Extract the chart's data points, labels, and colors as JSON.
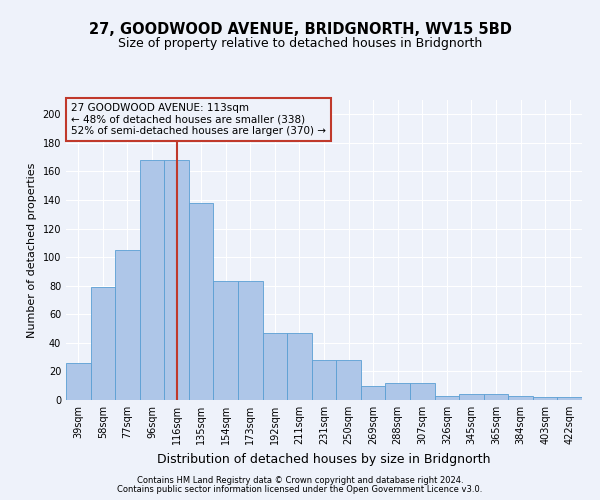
{
  "title": "27, GOODWOOD AVENUE, BRIDGNORTH, WV15 5BD",
  "subtitle": "Size of property relative to detached houses in Bridgnorth",
  "xlabel": "Distribution of detached houses by size in Bridgnorth",
  "ylabel": "Number of detached properties",
  "categories": [
    "39sqm",
    "58sqm",
    "77sqm",
    "96sqm",
    "116sqm",
    "135sqm",
    "154sqm",
    "173sqm",
    "192sqm",
    "211sqm",
    "231sqm",
    "250sqm",
    "269sqm",
    "288sqm",
    "307sqm",
    "326sqm",
    "345sqm",
    "365sqm",
    "384sqm",
    "403sqm",
    "422sqm"
  ],
  "values": [
    26,
    79,
    105,
    168,
    168,
    138,
    83,
    83,
    47,
    47,
    28,
    28,
    10,
    12,
    12,
    3,
    4,
    4,
    3,
    2,
    2
  ],
  "bar_color": "#aec6e8",
  "bar_edge_color": "#5a9fd4",
  "marker_index": 4,
  "marker_color": "#c0392b",
  "annotation_title": "27 GOODWOOD AVENUE: 113sqm",
  "annotation_line1": "← 48% of detached houses are smaller (338)",
  "annotation_line2": "52% of semi-detached houses are larger (370) →",
  "annotation_box_color": "#c0392b",
  "ylim": [
    0,
    210
  ],
  "yticks": [
    0,
    20,
    40,
    60,
    80,
    100,
    120,
    140,
    160,
    180,
    200
  ],
  "footer1": "Contains HM Land Registry data © Crown copyright and database right 2024.",
  "footer2": "Contains public sector information licensed under the Open Government Licence v3.0.",
  "bg_color": "#eef2fa",
  "grid_color": "#ffffff",
  "title_fontsize": 10.5,
  "subtitle_fontsize": 9,
  "tick_fontsize": 7,
  "ylabel_fontsize": 8,
  "xlabel_fontsize": 9,
  "footer_fontsize": 6
}
